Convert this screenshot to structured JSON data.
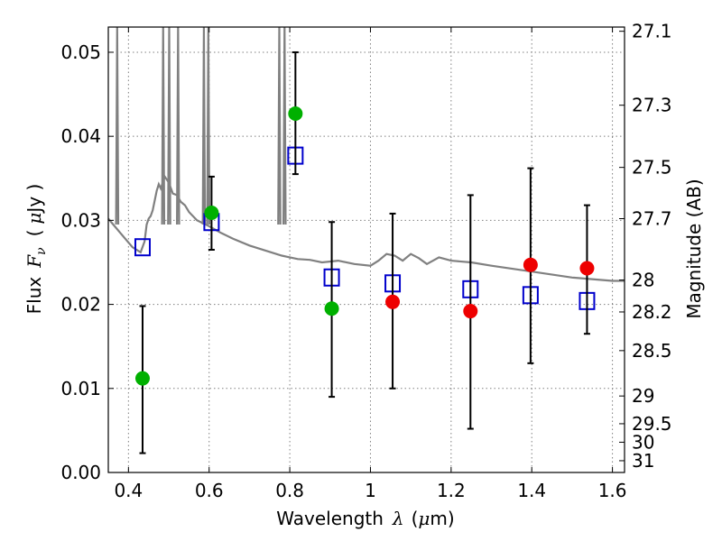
{
  "chart_data": {
    "type": "scatter",
    "title": "",
    "xlabel": "Wavelength",
    "xlabel_symbol": "λ",
    "xlabel_unit_open": "(",
    "xlabel_unit_mu": "μ",
    "xlabel_unit_rest": "m)",
    "ylabel": "Flux",
    "ylabel_symbol": "F",
    "ylabel_subscript": "ν",
    "ylabel_unit_open": "(",
    "ylabel_unit_mu": "μ",
    "ylabel_unit_rest": "Jy )",
    "ylabel_right": "Magnitude (AB)",
    "xlim": [
      0.35,
      1.63
    ],
    "ylim": [
      0.0,
      0.053
    ],
    "grid": true,
    "x_ticks": [
      0.4,
      0.6,
      0.8,
      1.0,
      1.2,
      1.4,
      1.6
    ],
    "x_tick_labels": [
      "0.4",
      "0.6",
      "0.8",
      "1",
      "1.2",
      "1.4",
      "1.6"
    ],
    "y_ticks": [
      0.0,
      0.01,
      0.02,
      0.03,
      0.04,
      0.05
    ],
    "y_tick_labels": [
      "0.00",
      "0.01",
      "0.02",
      "0.03",
      "0.04",
      "0.05"
    ],
    "right_ticks": [
      {
        "label": "27.1",
        "flux": 0.0525
      },
      {
        "label": "27.3",
        "flux": 0.0437
      },
      {
        "label": "27.5",
        "flux": 0.0363
      },
      {
        "label": "27.7",
        "flux": 0.0302
      },
      {
        "label": "28",
        "flux": 0.0229
      },
      {
        "label": "28.2",
        "flux": 0.0191
      },
      {
        "label": "28.5",
        "flux": 0.0145
      },
      {
        "label": "29",
        "flux": 0.0091
      },
      {
        "label": "29.5",
        "flux": 0.0058
      },
      {
        "label": "30",
        "flux": 0.0036
      },
      {
        "label": "31",
        "flux": 0.0014
      }
    ],
    "series": [
      {
        "kind": "model-spectrum",
        "color": "#808080",
        "x": [
          0.35,
          0.38,
          0.41,
          0.43,
          0.44,
          0.445,
          0.45,
          0.455,
          0.46,
          0.47,
          0.475,
          0.48,
          0.49,
          0.5,
          0.51,
          0.52,
          0.53,
          0.54,
          0.55,
          0.57,
          0.6,
          0.63,
          0.66,
          0.7,
          0.74,
          0.78,
          0.8,
          0.82,
          0.85,
          0.88,
          0.92,
          0.96,
          1.0,
          1.02,
          1.04,
          1.06,
          1.08,
          1.1,
          1.12,
          1.14,
          1.17,
          1.2,
          1.25,
          1.3,
          1.4,
          1.5,
          1.6,
          1.63
        ],
        "y": [
          0.0302,
          0.0285,
          0.0268,
          0.0262,
          0.0275,
          0.0295,
          0.0302,
          0.0305,
          0.0312,
          0.0335,
          0.0343,
          0.0338,
          0.0352,
          0.0345,
          0.0332,
          0.033,
          0.0322,
          0.0318,
          0.031,
          0.03,
          0.0293,
          0.0285,
          0.0278,
          0.027,
          0.0264,
          0.0258,
          0.0256,
          0.0254,
          0.0253,
          0.025,
          0.0252,
          0.0248,
          0.0246,
          0.0252,
          0.026,
          0.0258,
          0.0252,
          0.026,
          0.0255,
          0.0248,
          0.0256,
          0.0252,
          0.025,
          0.0246,
          0.0239,
          0.0232,
          0.0228,
          0.0228
        ]
      },
      {
        "kind": "emission-lines",
        "color": "#808080",
        "lines": [
          {
            "x": 0.372,
            "peak": 0.053
          },
          {
            "x": 0.486,
            "peak": 0.053
          },
          {
            "x": 0.501,
            "peak": 0.053
          },
          {
            "x": 0.523,
            "peak": 0.053
          },
          {
            "x": 0.587,
            "peak": 0.053
          },
          {
            "x": 0.598,
            "peak": 0.053
          },
          {
            "x": 0.774,
            "peak": 0.053
          },
          {
            "x": 0.787,
            "peak": 0.053
          }
        ]
      },
      {
        "kind": "model-photometry",
        "marker": "open-square",
        "color": "#0000cc",
        "x": [
          0.435,
          0.606,
          0.814,
          0.904,
          1.055,
          1.248,
          1.397,
          1.537
        ],
        "y": [
          0.0268,
          0.0298,
          0.0377,
          0.0232,
          0.0225,
          0.0218,
          0.0211,
          0.0204
        ]
      },
      {
        "kind": "observed",
        "marker": "filled-circle",
        "color": "#00b000",
        "x": [
          0.435,
          0.606,
          0.814,
          0.904
        ],
        "y": [
          0.0112,
          0.0309,
          0.0427,
          0.0195
        ],
        "err_low": [
          0.0023,
          0.0265,
          0.0355,
          0.009
        ],
        "err_high": [
          0.0198,
          0.0352,
          0.05,
          0.0298
        ]
      },
      {
        "kind": "observed",
        "marker": "filled-circle",
        "color": "#ee0000",
        "x": [
          1.055,
          1.248,
          1.397,
          1.537
        ],
        "y": [
          0.0203,
          0.0192,
          0.0247,
          0.0243
        ],
        "err_low": [
          0.01,
          0.0052,
          0.013,
          0.0165
        ],
        "err_high": [
          0.0308,
          0.033,
          0.0362,
          0.0318
        ]
      }
    ]
  }
}
